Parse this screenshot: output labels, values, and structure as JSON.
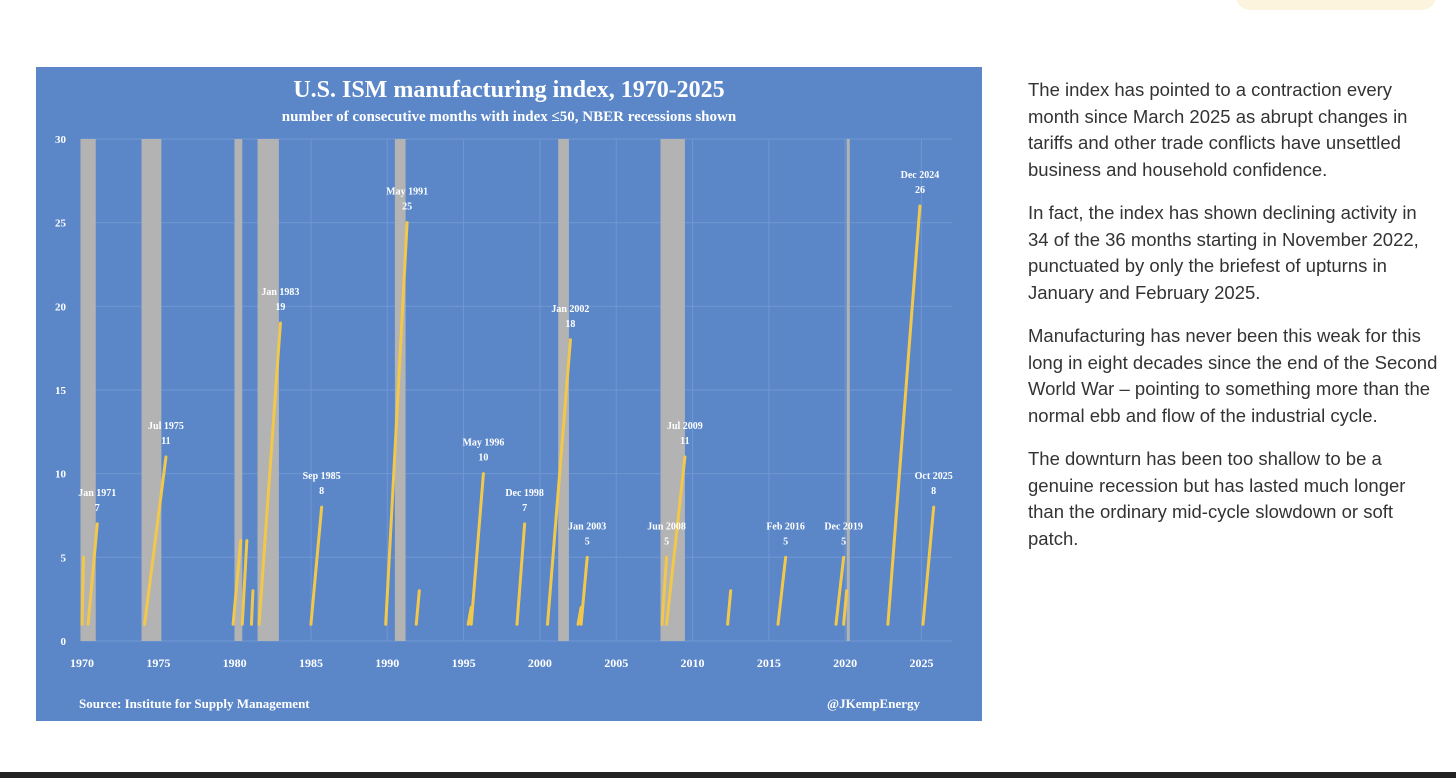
{
  "chart_data": {
    "type": "line",
    "title": "U.S. ISM manufacturing index, 1970-2025",
    "subtitle": "number of consecutive months with index ≤50, NBER recessions shown",
    "xlim": [
      1970,
      2027
    ],
    "ylim": [
      0,
      30
    ],
    "x_ticks": [
      1970,
      1975,
      1980,
      1985,
      1990,
      1995,
      2000,
      2005,
      2010,
      2015,
      2020,
      2025
    ],
    "y_ticks": [
      0,
      5,
      10,
      15,
      20,
      25,
      30
    ],
    "grid": true,
    "recessions": [
      {
        "start": 1969.9,
        "end": 1970.9
      },
      {
        "start": 1973.9,
        "end": 1975.2
      },
      {
        "start": 1980.0,
        "end": 1980.5
      },
      {
        "start": 1981.5,
        "end": 1982.9
      },
      {
        "start": 1990.5,
        "end": 1991.2
      },
      {
        "start": 2001.2,
        "end": 2001.9
      },
      {
        "start": 2007.9,
        "end": 2009.5
      },
      {
        "start": 2020.1,
        "end": 2020.3
      }
    ],
    "series": [
      {
        "x": [
          1970.0,
          1970.1
        ],
        "y": [
          1,
          5
        ]
      },
      {
        "x": [
          1970.4,
          1971.0
        ],
        "y": [
          1,
          7
        ]
      },
      {
        "x": [
          1974.1,
          1975.5
        ],
        "y": [
          1,
          11
        ]
      },
      {
        "x": [
          1979.9,
          1980.4
        ],
        "y": [
          1,
          6
        ]
      },
      {
        "x": [
          1980.5,
          1980.8
        ],
        "y": [
          1,
          6
        ]
      },
      {
        "x": [
          1981.1,
          1981.2
        ],
        "y": [
          1,
          3
        ]
      },
      {
        "x": [
          1981.6,
          1983.0
        ],
        "y": [
          1,
          19
        ]
      },
      {
        "x": [
          1985.0,
          1985.7
        ],
        "y": [
          1,
          8
        ]
      },
      {
        "x": [
          1989.9,
          1991.3
        ],
        "y": [
          1,
          25
        ]
      },
      {
        "x": [
          1991.9,
          1992.1
        ],
        "y": [
          1,
          3
        ]
      },
      {
        "x": [
          1995.3,
          1995.5
        ],
        "y": [
          1,
          2
        ]
      },
      {
        "x": [
          1995.5,
          1996.3
        ],
        "y": [
          1,
          10
        ]
      },
      {
        "x": [
          1998.5,
          1999.0
        ],
        "y": [
          1,
          7
        ]
      },
      {
        "x": [
          2000.5,
          2002.0
        ],
        "y": [
          1,
          18
        ]
      },
      {
        "x": [
          2002.5,
          2002.7
        ],
        "y": [
          1,
          2
        ]
      },
      {
        "x": [
          2002.7,
          2003.1
        ],
        "y": [
          1,
          5
        ]
      },
      {
        "x": [
          2008.0,
          2008.3
        ],
        "y": [
          1,
          5
        ]
      },
      {
        "x": [
          2008.3,
          2009.5
        ],
        "y": [
          1,
          11
        ]
      },
      {
        "x": [
          2012.3,
          2012.5
        ],
        "y": [
          1,
          3
        ]
      },
      {
        "x": [
          2015.6,
          2016.1
        ],
        "y": [
          1,
          5
        ]
      },
      {
        "x": [
          2019.4,
          2019.9
        ],
        "y": [
          1,
          5
        ]
      },
      {
        "x": [
          2019.9,
          2020.1
        ],
        "y": [
          1,
          3
        ]
      },
      {
        "x": [
          2022.8,
          2024.9
        ],
        "y": [
          1,
          26
        ]
      },
      {
        "x": [
          2025.1,
          2025.8
        ],
        "y": [
          1,
          8
        ]
      }
    ],
    "annotations": [
      {
        "text": "Jan 1971",
        "value": "7",
        "x": 1971.0,
        "y": 7
      },
      {
        "text": "Jul 1975",
        "value": "11",
        "x": 1975.5,
        "y": 11
      },
      {
        "text": "Jan 1983",
        "value": "19",
        "x": 1983.0,
        "y": 19
      },
      {
        "text": "Sep 1985",
        "value": "8",
        "x": 1985.7,
        "y": 8
      },
      {
        "text": "May 1991",
        "value": "25",
        "x": 1991.3,
        "y": 25
      },
      {
        "text": "May 1996",
        "value": "10",
        "x": 1996.3,
        "y": 10
      },
      {
        "text": "Dec 1998",
        "value": "7",
        "x": 1999.0,
        "y": 7
      },
      {
        "text": "Jan 2002",
        "value": "18",
        "x": 2002.0,
        "y": 18
      },
      {
        "text": "Jan 2003",
        "value": "5",
        "x": 2003.1,
        "y": 5
      },
      {
        "text": "Jun 2008",
        "value": "5",
        "x": 2008.3,
        "y": 5
      },
      {
        "text": "Jul 2009",
        "value": "11",
        "x": 2009.5,
        "y": 11
      },
      {
        "text": "Feb 2016",
        "value": "5",
        "x": 2016.1,
        "y": 5
      },
      {
        "text": "Dec 2019",
        "value": "5",
        "x": 2019.9,
        "y": 5
      },
      {
        "text": "Dec 2024",
        "value": "26",
        "x": 2024.9,
        "y": 26
      },
      {
        "text": "Oct 2025",
        "value": "8",
        "x": 2025.8,
        "y": 8
      }
    ],
    "source": "Source: Institute for Supply Management",
    "credit": "@JKempEnergy"
  },
  "colors": {
    "background": "#5b87c8",
    "recession": "#b3b3b3",
    "line": "#f2c84b",
    "grid": "#6f97d2",
    "text": "#ffffff"
  },
  "commentary": {
    "paragraphs": [
      "The index has pointed to a contraction every month since March 2025 as abrupt changes in tariffs and other trade conflicts have unsettled business and household confidence.",
      "In fact, the index has shown declining activity in 34 of the 36 months starting in November 2022, punctuated by only the briefest of upturns in January and February 2025.",
      "Manufacturing has never been this weak for this long in eight decades since the end of the Second World War – pointing to something more than the normal ebb and flow of the industrial cycle.",
      "The downturn has been too shallow to be a genuine recession but has lasted much longer than the ordinary mid-cycle slowdown or soft patch."
    ]
  }
}
